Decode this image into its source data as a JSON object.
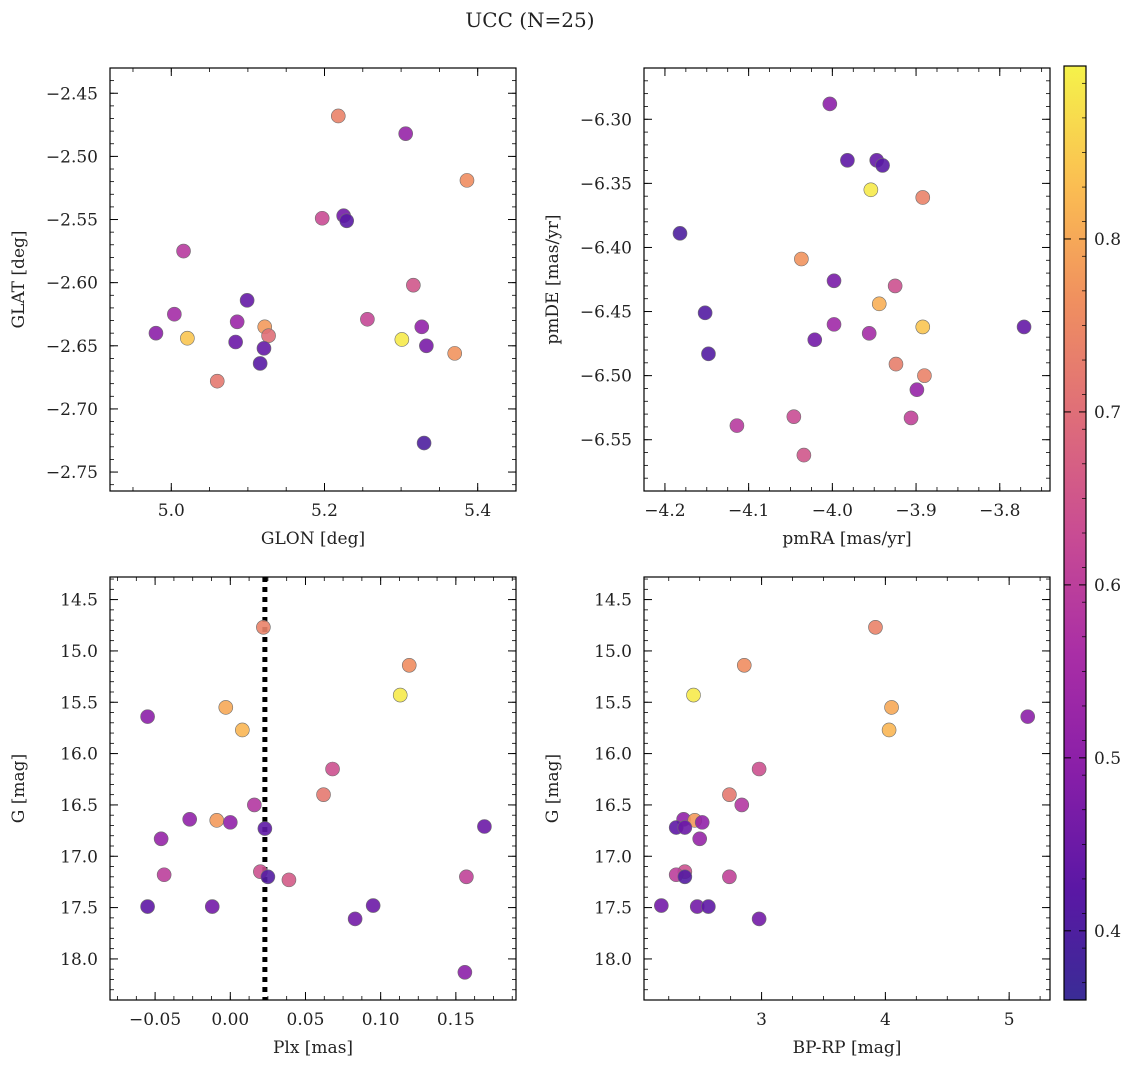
{
  "figure_title": "UCC (N=25)",
  "colorbar": {
    "range": [
      0.36,
      0.9
    ],
    "ticks": [
      0.4,
      0.5,
      0.6,
      0.7,
      0.8
    ],
    "tick_labels": [
      "0.4",
      "0.5",
      "0.6",
      "0.7",
      "0.8"
    ],
    "colormap": "plasma"
  },
  "chart_data": [
    {
      "type": "scatter",
      "xlabel": "GLON [deg]",
      "ylabel": "GLAT [deg]",
      "xlim": [
        4.92,
        5.45
      ],
      "ylim": [
        -2.765,
        -2.43
      ],
      "y_inverted": false,
      "xticks": [
        5.0,
        5.2,
        5.4
      ],
      "xtick_labels": [
        "5.0",
        "5.2",
        "5.4"
      ],
      "yticks": [
        -2.75,
        -2.7,
        -2.65,
        -2.6,
        -2.55,
        -2.5,
        -2.45
      ],
      "ytick_labels": [
        "−2.75",
        "−2.70",
        "−2.65",
        "−2.60",
        "−2.55",
        "−2.50",
        "−2.45"
      ],
      "vline": null,
      "points": [
        {
          "x": 5.218,
          "y": -2.468,
          "c": 0.74
        },
        {
          "x": 5.306,
          "y": -2.482,
          "c": 0.52
        },
        {
          "x": 5.386,
          "y": -2.519,
          "c": 0.76
        },
        {
          "x": 5.197,
          "y": -2.549,
          "c": 0.63
        },
        {
          "x": 5.225,
          "y": -2.547,
          "c": 0.46
        },
        {
          "x": 5.229,
          "y": -2.551,
          "c": 0.42
        },
        {
          "x": 5.016,
          "y": -2.575,
          "c": 0.59
        },
        {
          "x": 5.316,
          "y": -2.602,
          "c": 0.65
        },
        {
          "x": 5.099,
          "y": -2.614,
          "c": 0.44
        },
        {
          "x": 5.004,
          "y": -2.625,
          "c": 0.55
        },
        {
          "x": 5.256,
          "y": -2.629,
          "c": 0.62
        },
        {
          "x": 5.086,
          "y": -2.631,
          "c": 0.53
        },
        {
          "x": 5.122,
          "y": -2.635,
          "c": 0.78
        },
        {
          "x": 5.327,
          "y": -2.635,
          "c": 0.51
        },
        {
          "x": 4.98,
          "y": -2.64,
          "c": 0.5
        },
        {
          "x": 5.127,
          "y": -2.642,
          "c": 0.7
        },
        {
          "x": 5.021,
          "y": -2.644,
          "c": 0.84
        },
        {
          "x": 5.301,
          "y": -2.645,
          "c": 0.89
        },
        {
          "x": 5.084,
          "y": -2.647,
          "c": 0.45
        },
        {
          "x": 5.333,
          "y": -2.65,
          "c": 0.47
        },
        {
          "x": 5.121,
          "y": -2.652,
          "c": 0.44
        },
        {
          "x": 5.37,
          "y": -2.656,
          "c": 0.77
        },
        {
          "x": 5.116,
          "y": -2.664,
          "c": 0.42
        },
        {
          "x": 5.06,
          "y": -2.678,
          "c": 0.72
        },
        {
          "x": 5.33,
          "y": -2.727,
          "c": 0.4
        }
      ]
    },
    {
      "type": "scatter",
      "xlabel": "pmRA [mas/yr]",
      "ylabel": "pmDE [mas/yr]",
      "xlim": [
        -4.225,
        -3.74
      ],
      "ylim": [
        -6.59,
        -6.26
      ],
      "y_inverted": false,
      "xticks": [
        -4.2,
        -4.1,
        -4.0,
        -3.9,
        -3.8
      ],
      "xtick_labels": [
        "−4.2",
        "−4.1",
        "−4.0",
        "−3.9",
        "−3.8"
      ],
      "yticks": [
        -6.55,
        -6.5,
        -6.45,
        -6.4,
        -6.35,
        -6.3
      ],
      "ytick_labels": [
        "−6.55",
        "−6.50",
        "−6.45",
        "−6.40",
        "−6.35",
        "−6.30"
      ],
      "vline": null,
      "points": [
        {
          "x": -4.003,
          "y": -6.288,
          "c": 0.5
        },
        {
          "x": -3.982,
          "y": -6.332,
          "c": 0.43
        },
        {
          "x": -3.947,
          "y": -6.332,
          "c": 0.44
        },
        {
          "x": -3.94,
          "y": -6.336,
          "c": 0.42
        },
        {
          "x": -3.954,
          "y": -6.355,
          "c": 0.89
        },
        {
          "x": -3.892,
          "y": -6.361,
          "c": 0.74
        },
        {
          "x": -4.182,
          "y": -6.389,
          "c": 0.4
        },
        {
          "x": -4.037,
          "y": -6.409,
          "c": 0.77
        },
        {
          "x": -3.998,
          "y": -6.426,
          "c": 0.47
        },
        {
          "x": -3.925,
          "y": -6.43,
          "c": 0.64
        },
        {
          "x": -3.944,
          "y": -6.444,
          "c": 0.81
        },
        {
          "x": -4.152,
          "y": -6.451,
          "c": 0.41
        },
        {
          "x": -3.998,
          "y": -6.46,
          "c": 0.54
        },
        {
          "x": -3.892,
          "y": -6.462,
          "c": 0.84
        },
        {
          "x": -3.771,
          "y": -6.462,
          "c": 0.44
        },
        {
          "x": -3.956,
          "y": -6.467,
          "c": 0.55
        },
        {
          "x": -4.021,
          "y": -6.472,
          "c": 0.46
        },
        {
          "x": -4.148,
          "y": -6.483,
          "c": 0.41
        },
        {
          "x": -3.924,
          "y": -6.491,
          "c": 0.73
        },
        {
          "x": -3.89,
          "y": -6.5,
          "c": 0.74
        },
        {
          "x": -3.899,
          "y": -6.511,
          "c": 0.52
        },
        {
          "x": -4.046,
          "y": -6.532,
          "c": 0.63
        },
        {
          "x": -3.906,
          "y": -6.533,
          "c": 0.61
        },
        {
          "x": -4.114,
          "y": -6.539,
          "c": 0.59
        },
        {
          "x": -4.034,
          "y": -6.562,
          "c": 0.65
        }
      ]
    },
    {
      "type": "scatter",
      "xlabel": "Plx [mas]",
      "ylabel": "G [mag]",
      "xlim": [
        -0.08,
        0.19
      ],
      "ylim": [
        18.4,
        14.28
      ],
      "y_inverted": true,
      "xticks": [
        -0.05,
        0.0,
        0.05,
        0.1,
        0.15
      ],
      "xtick_labels": [
        "−0.05",
        "0.00",
        "0.05",
        "0.10",
        "0.15"
      ],
      "yticks": [
        14.5,
        15.0,
        15.5,
        16.0,
        16.5,
        17.0,
        17.5,
        18.0
      ],
      "ytick_labels": [
        "14.5",
        "15.0",
        "15.5",
        "16.0",
        "16.5",
        "17.0",
        "17.5",
        "18.0"
      ],
      "vline": 0.023,
      "points": [
        {
          "x": 0.022,
          "y": 14.77,
          "c": 0.74
        },
        {
          "x": 0.119,
          "y": 15.14,
          "c": 0.76
        },
        {
          "x": 0.113,
          "y": 15.43,
          "c": 0.89
        },
        {
          "x": -0.003,
          "y": 15.55,
          "c": 0.8
        },
        {
          "x": -0.055,
          "y": 15.64,
          "c": 0.5
        },
        {
          "x": 0.008,
          "y": 15.77,
          "c": 0.82
        },
        {
          "x": 0.068,
          "y": 16.15,
          "c": 0.64
        },
        {
          "x": 0.062,
          "y": 16.4,
          "c": 0.72
        },
        {
          "x": 0.016,
          "y": 16.5,
          "c": 0.58
        },
        {
          "x": -0.027,
          "y": 16.64,
          "c": 0.51
        },
        {
          "x": -0.009,
          "y": 16.65,
          "c": 0.78
        },
        {
          "x": 0.0,
          "y": 16.67,
          "c": 0.51
        },
        {
          "x": 0.169,
          "y": 16.71,
          "c": 0.45
        },
        {
          "x": 0.023,
          "y": 16.73,
          "c": 0.43
        },
        {
          "x": -0.046,
          "y": 16.83,
          "c": 0.52
        },
        {
          "x": 0.02,
          "y": 17.15,
          "c": 0.64
        },
        {
          "x": -0.044,
          "y": 17.18,
          "c": 0.6
        },
        {
          "x": 0.025,
          "y": 17.2,
          "c": 0.41
        },
        {
          "x": 0.157,
          "y": 17.2,
          "c": 0.61
        },
        {
          "x": 0.039,
          "y": 17.23,
          "c": 0.66
        },
        {
          "x": -0.055,
          "y": 17.49,
          "c": 0.43
        },
        {
          "x": -0.012,
          "y": 17.49,
          "c": 0.46
        },
        {
          "x": 0.095,
          "y": 17.48,
          "c": 0.45
        },
        {
          "x": 0.083,
          "y": 17.61,
          "c": 0.46
        },
        {
          "x": 0.156,
          "y": 18.13,
          "c": 0.5
        }
      ]
    },
    {
      "type": "scatter",
      "xlabel": "BP-RP [mag]",
      "ylabel": "G [mag]",
      "xlim": [
        2.05,
        5.33
      ],
      "ylim": [
        18.4,
        14.28
      ],
      "y_inverted": true,
      "xticks": [
        3,
        4,
        5
      ],
      "xtick_labels": [
        "3",
        "4",
        "5"
      ],
      "yticks": [
        14.5,
        15.0,
        15.5,
        16.0,
        16.5,
        17.0,
        17.5,
        18.0
      ],
      "ytick_labels": [
        "14.5",
        "15.0",
        "15.5",
        "16.0",
        "16.5",
        "17.0",
        "17.5",
        "18.0"
      ],
      "vline": null,
      "points": [
        {
          "x": 3.92,
          "y": 14.77,
          "c": 0.74
        },
        {
          "x": 2.86,
          "y": 15.14,
          "c": 0.76
        },
        {
          "x": 2.45,
          "y": 15.43,
          "c": 0.89
        },
        {
          "x": 4.05,
          "y": 15.55,
          "c": 0.8
        },
        {
          "x": 5.15,
          "y": 15.64,
          "c": 0.5
        },
        {
          "x": 4.03,
          "y": 15.77,
          "c": 0.82
        },
        {
          "x": 2.98,
          "y": 16.15,
          "c": 0.64
        },
        {
          "x": 2.74,
          "y": 16.4,
          "c": 0.72
        },
        {
          "x": 2.84,
          "y": 16.5,
          "c": 0.58
        },
        {
          "x": 2.37,
          "y": 16.64,
          "c": 0.51
        },
        {
          "x": 2.46,
          "y": 16.65,
          "c": 0.78
        },
        {
          "x": 2.52,
          "y": 16.67,
          "c": 0.51
        },
        {
          "x": 2.31,
          "y": 16.72,
          "c": 0.43
        },
        {
          "x": 2.38,
          "y": 16.72,
          "c": 0.45
        },
        {
          "x": 2.5,
          "y": 16.83,
          "c": 0.52
        },
        {
          "x": 2.38,
          "y": 17.15,
          "c": 0.64
        },
        {
          "x": 2.31,
          "y": 17.18,
          "c": 0.6
        },
        {
          "x": 2.38,
          "y": 17.2,
          "c": 0.41
        },
        {
          "x": 2.74,
          "y": 17.2,
          "c": 0.61
        },
        {
          "x": 2.19,
          "y": 17.48,
          "c": 0.46
        },
        {
          "x": 2.48,
          "y": 17.49,
          "c": 0.46
        },
        {
          "x": 2.57,
          "y": 17.49,
          "c": 0.43
        },
        {
          "x": 2.98,
          "y": 17.61,
          "c": 0.46
        }
      ]
    }
  ]
}
